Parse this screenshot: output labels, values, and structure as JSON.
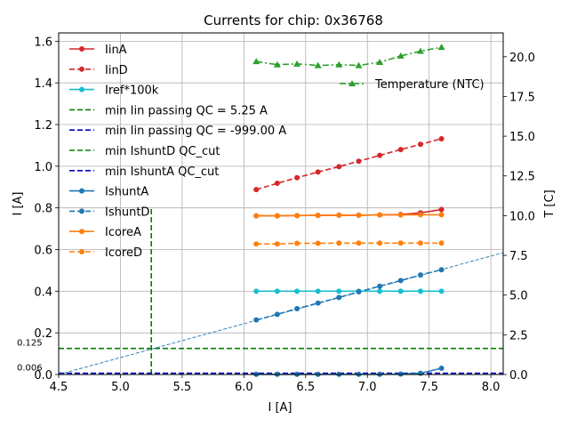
{
  "chart_data": {
    "type": "line",
    "title": "Currents for chip: 0x36768",
    "xlabel": "I [A]",
    "ylabel": "I [A]",
    "y2label": "T [C]",
    "xlim": [
      4.5,
      8.1
    ],
    "ylim": [
      0.0,
      1.64
    ],
    "y2lim": [
      0.0,
      21.5
    ],
    "xticks": [
      "4.5",
      "5.0",
      "5.5",
      "6.0",
      "6.5",
      "7.0",
      "7.5",
      "8.0"
    ],
    "yticks": [
      "0.0",
      "0.2",
      "0.4",
      "0.6",
      "0.8",
      "1.0",
      "1.2",
      "1.4",
      "1.6"
    ],
    "y2ticks": [
      "0.0",
      "2.5",
      "5.0",
      "7.5",
      "10.0",
      "12.5",
      "15.0",
      "17.5",
      "20.0"
    ],
    "x": [
      6.1,
      6.27,
      6.43,
      6.6,
      6.77,
      6.93,
      7.1,
      7.27,
      7.43,
      7.6
    ],
    "series": [
      {
        "name": "IinA",
        "color": "#d62728",
        "dash": "solid",
        "marker": true,
        "values": [
          0.762,
          0.762,
          0.763,
          0.764,
          0.765,
          0.765,
          0.766,
          0.768,
          0.776,
          0.792
        ]
      },
      {
        "name": "IinD",
        "color": "#d62728",
        "dash": "dashed",
        "marker": true,
        "values": [
          0.888,
          0.918,
          0.945,
          0.972,
          0.998,
          1.024,
          1.052,
          1.08,
          1.105,
          1.132
        ]
      },
      {
        "name": "Iref*100k",
        "color": "#17becf",
        "dash": "solid",
        "marker": true,
        "values": [
          0.4,
          0.4,
          0.4,
          0.4,
          0.4,
          0.4,
          0.4,
          0.4,
          0.4,
          0.4
        ]
      },
      {
        "name": "IshuntA",
        "color": "#1f77b4",
        "dash": "solid",
        "marker": true,
        "values": [
          0.001,
          0.001,
          0.001,
          0.001,
          0.001,
          0.001,
          0.001,
          0.002,
          0.006,
          0.03
        ]
      },
      {
        "name": "IshuntD",
        "color": "#1f77b4",
        "dash": "dashed",
        "marker": true,
        "values": [
          0.262,
          0.289,
          0.316,
          0.343,
          0.37,
          0.397,
          0.424,
          0.451,
          0.478,
          0.503
        ]
      },
      {
        "name": "IcoreA",
        "color": "#ff7f0e",
        "dash": "solid",
        "marker": true,
        "values": [
          0.762,
          0.762,
          0.763,
          0.764,
          0.765,
          0.765,
          0.766,
          0.766,
          0.767,
          0.767
        ]
      },
      {
        "name": "IcoreD",
        "color": "#ff7f0e",
        "dash": "dashed",
        "marker": true,
        "values": [
          0.627,
          0.627,
          0.63,
          0.63,
          0.631,
          0.631,
          0.631,
          0.631,
          0.631,
          0.631
        ]
      }
    ],
    "reference_lines": [
      {
        "name": "min Iin passing QC = 5.25 A",
        "color": "#008000",
        "orientation": "vertical",
        "x": 5.25,
        "y_max": 0.8
      },
      {
        "name": "min Iin passing QC = -999.00 A",
        "color": "#0000cc",
        "orientation": "vertical",
        "x": -999.0
      },
      {
        "name": "min IshuntD QC_cut",
        "color": "#008000",
        "orientation": "horizontal",
        "y": 0.125,
        "label": "0.125"
      },
      {
        "name": "min IshuntA QC_cut",
        "color": "#0000cc",
        "orientation": "horizontal",
        "y": 0.006,
        "label": "0.006"
      }
    ],
    "fit_line": {
      "color": "#1f77b4",
      "x": [
        4.5,
        8.1
      ],
      "y": [
        0.0,
        0.585
      ]
    },
    "temperature": {
      "name": "Temperature (NTC)",
      "color": "#2ca02c",
      "axis": "right",
      "values": [
        19.7,
        19.5,
        19.55,
        19.45,
        19.5,
        19.45,
        19.65,
        20.05,
        20.35,
        20.6
      ]
    },
    "legend_left": [
      "IinA",
      "IinD",
      "Iref*100k",
      "min Iin passing QC = 5.25 A",
      "min Iin passing QC = -999.00 A",
      "min IshuntD QC_cut",
      "min IshuntA QC_cut",
      "IshuntA",
      "IshuntD",
      "IcoreA",
      "IcoreD"
    ],
    "legend_right": [
      "Temperature (NTC)"
    ],
    "legend_position": "upper-left / upper-right",
    "grid": true
  }
}
